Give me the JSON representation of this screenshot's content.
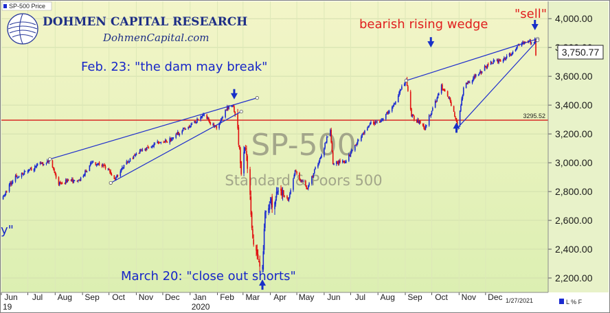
{
  "header": {
    "series_tag": "SP-500 Price",
    "brand_name": "DOHMEN CAPITAL RESEARCH",
    "brand_url": "DohmenCapital.com"
  },
  "watermark": {
    "symbol": "SP-500",
    "name": "Standard & Poors 500"
  },
  "annotations": {
    "feb23": "Feb. 23: \"the dam may break\"",
    "march20": "March 20: \"close out shorts\"",
    "wedge": "bearish rising wedge",
    "sell": "\"sell\"",
    "left_fragment": "y\""
  },
  "footer": {
    "date_label": "1/27/2021",
    "log_toggle": "L % F"
  },
  "colors": {
    "background_top": "#f3f5c8",
    "background_bottom": "#dcefb2",
    "up_candle": "#1a2ad0",
    "down_candle": "#e01010",
    "trendline": "#1f2fcc",
    "support_line": "#d81818",
    "axis_text": "#1a1a1a",
    "annotation_blue": "#1726c8",
    "annotation_red": "#e01e1e"
  },
  "chart_data": {
    "type": "candlestick",
    "ylim": [
      2100,
      4120
    ],
    "y_ticks": [
      2200,
      2400,
      2600,
      2800,
      3000,
      3200,
      3400,
      3600,
      3800,
      4000
    ],
    "y_tick_labels": [
      "2,200.00",
      "2,400.00",
      "2,600.00",
      "2,800.00",
      "3,000.00",
      "3,200.00",
      "3,400.00",
      "3,600.00",
      "3,800.00",
      "4,000.00"
    ],
    "x_range": [
      "2019-06-01",
      "2021-02-10"
    ],
    "x_ticks": [
      {
        "date": "2019-06-01",
        "label": "Jun"
      },
      {
        "date": "2019-07-01",
        "label": "Jul"
      },
      {
        "date": "2019-08-01",
        "label": "Aug"
      },
      {
        "date": "2019-09-01",
        "label": "Sep"
      },
      {
        "date": "2019-10-01",
        "label": "Oct"
      },
      {
        "date": "2019-11-01",
        "label": "Nov"
      },
      {
        "date": "2019-12-01",
        "label": "Dec"
      },
      {
        "date": "2020-01-01",
        "label": "Jan"
      },
      {
        "date": "2020-02-01",
        "label": "Feb"
      },
      {
        "date": "2020-03-01",
        "label": "Mar"
      },
      {
        "date": "2020-04-01",
        "label": "Apr"
      },
      {
        "date": "2020-05-01",
        "label": "May"
      },
      {
        "date": "2020-06-01",
        "label": "Jun"
      },
      {
        "date": "2020-07-01",
        "label": "Jul"
      },
      {
        "date": "2020-08-01",
        "label": "Aug"
      },
      {
        "date": "2020-09-01",
        "label": "Sep"
      },
      {
        "date": "2020-10-01",
        "label": "Oct"
      },
      {
        "date": "2020-11-01",
        "label": "Nov"
      },
      {
        "date": "2020-12-01",
        "label": "Dec"
      }
    ],
    "year_labels": [
      {
        "date": "2019-06-01",
        "label": "19"
      },
      {
        "date": "2020-01-01",
        "label": "2020"
      }
    ],
    "last_price": 3750.77,
    "last_price_label": "3,750.77",
    "horizontal_line": {
      "value": 3295.52,
      "label": "3295.52"
    },
    "close_path": [
      [
        "2019-06-01",
        2750
      ],
      [
        "2019-06-15",
        2890
      ],
      [
        "2019-06-28",
        2940
      ],
      [
        "2019-07-15",
        2990
      ],
      [
        "2019-07-26",
        3020
      ],
      [
        "2019-08-05",
        2860
      ],
      [
        "2019-08-15",
        2870
      ],
      [
        "2019-08-28",
        2880
      ],
      [
        "2019-09-12",
        3000
      ],
      [
        "2019-09-26",
        2980
      ],
      [
        "2019-10-08",
        2890
      ],
      [
        "2019-10-20",
        2990
      ],
      [
        "2019-11-05",
        3080
      ],
      [
        "2019-11-25",
        3140
      ],
      [
        "2019-12-06",
        3150
      ],
      [
        "2019-12-27",
        3240
      ],
      [
        "2020-01-17",
        3330
      ],
      [
        "2020-01-31",
        3230
      ],
      [
        "2020-02-12",
        3380
      ],
      [
        "2020-02-19",
        3390
      ],
      [
        "2020-02-24",
        3230
      ],
      [
        "2020-02-28",
        2950
      ],
      [
        "2020-03-04",
        3130
      ],
      [
        "2020-03-09",
        2750
      ],
      [
        "2020-03-12",
        2480
      ],
      [
        "2020-03-16",
        2390
      ],
      [
        "2020-03-20",
        2300
      ],
      [
        "2020-03-23",
        2237
      ],
      [
        "2020-03-26",
        2630
      ],
      [
        "2020-04-09",
        2790
      ],
      [
        "2020-04-21",
        2740
      ],
      [
        "2020-04-29",
        2940
      ],
      [
        "2020-05-13",
        2820
      ],
      [
        "2020-05-27",
        3030
      ],
      [
        "2020-06-08",
        3230
      ],
      [
        "2020-06-11",
        3000
      ],
      [
        "2020-06-26",
        3010
      ],
      [
        "2020-07-09",
        3150
      ],
      [
        "2020-07-22",
        3270
      ],
      [
        "2020-08-03",
        3290
      ],
      [
        "2020-08-18",
        3390
      ],
      [
        "2020-09-02",
        3580
      ],
      [
        "2020-09-08",
        3330
      ],
      [
        "2020-09-23",
        3240
      ],
      [
        "2020-10-12",
        3530
      ],
      [
        "2020-10-21",
        3440
      ],
      [
        "2020-10-30",
        3270
      ],
      [
        "2020-11-06",
        3510
      ],
      [
        "2020-11-09",
        3550
      ],
      [
        "2020-11-25",
        3630
      ],
      [
        "2020-12-08",
        3700
      ],
      [
        "2020-12-18",
        3710
      ],
      [
        "2020-12-31",
        3756
      ],
      [
        "2021-01-08",
        3820
      ],
      [
        "2021-01-22",
        3840
      ],
      [
        "2021-01-26",
        3850
      ],
      [
        "2021-01-27",
        3750
      ]
    ],
    "trendlines": [
      {
        "from": [
          "2019-07-26",
          3025
        ],
        "to": [
          "2020-03-17",
          3450
        ],
        "role": "upper-wedge-1"
      },
      {
        "from": [
          "2019-10-03",
          2860
        ],
        "to": [
          "2020-02-28",
          3355
        ],
        "role": "lower-wedge-1"
      },
      {
        "from": [
          "2020-09-02",
          3570
        ],
        "to": [
          "2021-01-29",
          3860
        ],
        "role": "upper-wedge-2"
      },
      {
        "from": [
          "2020-10-30",
          3240
        ],
        "to": [
          "2021-01-29",
          3850
        ],
        "role": "lower-wedge-2"
      }
    ],
    "markers": [
      {
        "date": "2020-02-20",
        "value": 3440,
        "direction": "down",
        "role": "feb-top"
      },
      {
        "date": "2020-03-23",
        "value": 2190,
        "direction": "up",
        "role": "march-bottom"
      },
      {
        "date": "2020-09-30",
        "value": 3800,
        "direction": "down",
        "role": "wedge-arrow"
      },
      {
        "date": "2020-10-29",
        "value": 3280,
        "direction": "up",
        "role": "oct-low"
      },
      {
        "date": "2021-01-26",
        "value": 3920,
        "direction": "down",
        "role": "sell-arrow"
      }
    ]
  }
}
